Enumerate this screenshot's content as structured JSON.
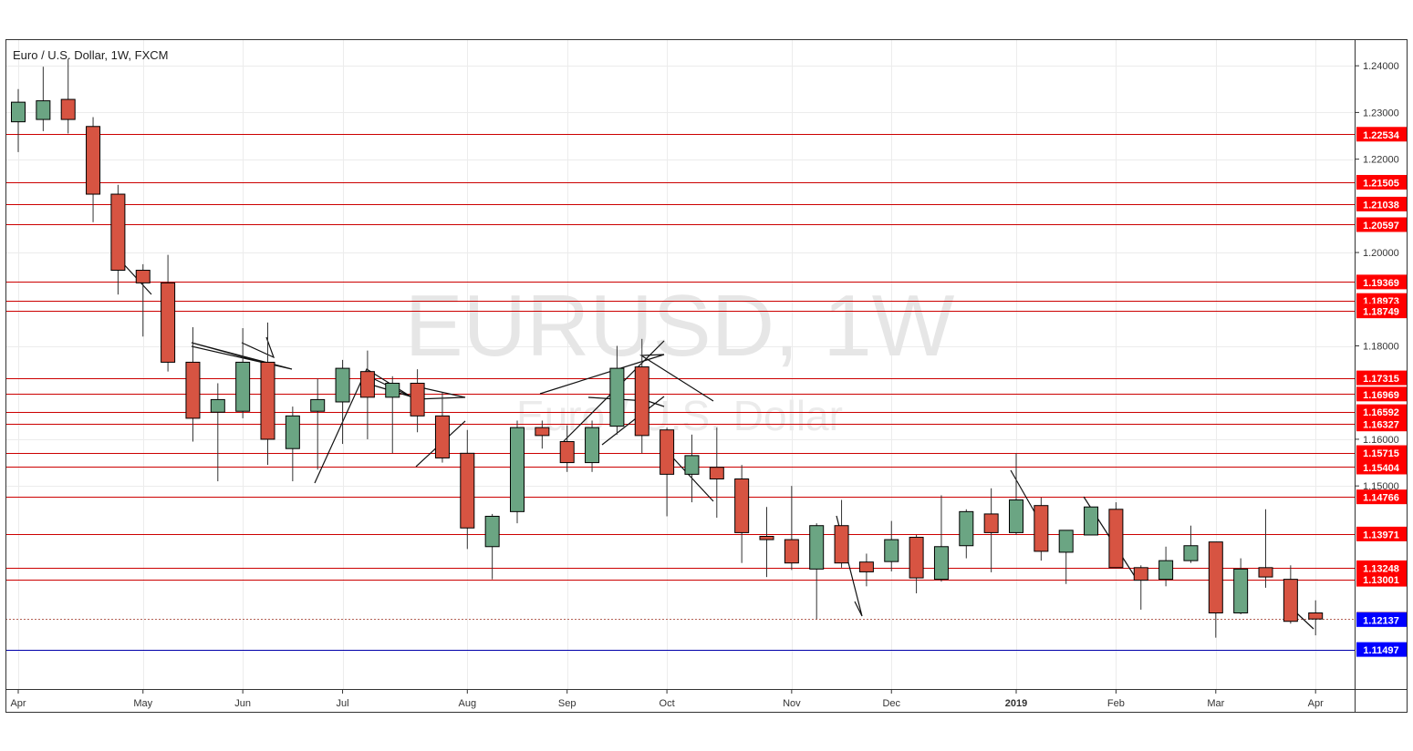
{
  "header": {
    "symbol_title": "Euro / U.S. Dollar, 1W, FXCM",
    "watermark_main": "EURUSD, 1W",
    "watermark_sub": "Euro / U.S. Dollar"
  },
  "colors": {
    "up_fill": "#6ba583",
    "down_fill": "#d75442",
    "candle_outline": "#000000",
    "hline": "#cc0000",
    "hline_label_bg": "#ff0000",
    "blue_line": "#0000aa",
    "blue_label_bg": "#0000ff",
    "last_price_bg": "#b56357",
    "watermark": "#e6e6e6",
    "grid": "#ececec"
  },
  "chart_data": {
    "type": "candlestick",
    "title": "Euro / U.S. Dollar, 1W, FXCM",
    "ylim": [
      1.1065,
      1.2455
    ],
    "y_ticks": [
      "1.24000",
      "1.23000",
      "1.22000",
      "1.20000",
      "1.18000",
      "1.16000",
      "1.15000"
    ],
    "x_ticks": [
      "Apr",
      "May",
      "Jun",
      "Jul",
      "Aug",
      "Sep",
      "Oct",
      "Nov",
      "Dec",
      "2019",
      "Feb",
      "Mar",
      "Apr"
    ],
    "x_tick_weeks": [
      0,
      5,
      9,
      13,
      18,
      22,
      26,
      31,
      35,
      40,
      44,
      48,
      52
    ],
    "grid": true,
    "candles": [
      {
        "o": 1.228,
        "h": 1.235,
        "l": 1.2215,
        "c": 1.2322
      },
      {
        "o": 1.2285,
        "h": 1.2398,
        "l": 1.226,
        "c": 1.2325
      },
      {
        "o": 1.2328,
        "h": 1.2415,
        "l": 1.2255,
        "c": 1.2285
      },
      {
        "o": 1.227,
        "h": 1.229,
        "l": 1.2065,
        "c": 1.2125
      },
      {
        "o": 1.2125,
        "h": 1.2145,
        "l": 1.191,
        "c": 1.1962
      },
      {
        "o": 1.1962,
        "h": 1.1975,
        "l": 1.182,
        "c": 1.1935
      },
      {
        "o": 1.1935,
        "h": 1.1995,
        "l": 1.1745,
        "c": 1.1765
      },
      {
        "o": 1.1765,
        "h": 1.184,
        "l": 1.1595,
        "c": 1.1645
      },
      {
        "o": 1.1658,
        "h": 1.172,
        "l": 1.151,
        "c": 1.1685
      },
      {
        "o": 1.166,
        "h": 1.1838,
        "l": 1.1645,
        "c": 1.1765
      },
      {
        "o": 1.1765,
        "h": 1.185,
        "l": 1.1545,
        "c": 1.16
      },
      {
        "o": 1.158,
        "h": 1.167,
        "l": 1.151,
        "c": 1.165
      },
      {
        "o": 1.166,
        "h": 1.173,
        "l": 1.1535,
        "c": 1.1685
      },
      {
        "o": 1.168,
        "h": 1.177,
        "l": 1.159,
        "c": 1.1752
      },
      {
        "o": 1.1745,
        "h": 1.179,
        "l": 1.16,
        "c": 1.169
      },
      {
        "o": 1.169,
        "h": 1.1735,
        "l": 1.157,
        "c": 1.172
      },
      {
        "o": 1.172,
        "h": 1.175,
        "l": 1.1615,
        "c": 1.165
      },
      {
        "o": 1.165,
        "h": 1.17,
        "l": 1.155,
        "c": 1.156
      },
      {
        "o": 1.157,
        "h": 1.162,
        "l": 1.1365,
        "c": 1.141
      },
      {
        "o": 1.137,
        "h": 1.144,
        "l": 1.13,
        "c": 1.1435
      },
      {
        "o": 1.1445,
        "h": 1.164,
        "l": 1.142,
        "c": 1.1625
      },
      {
        "o": 1.1625,
        "h": 1.164,
        "l": 1.158,
        "c": 1.1608
      },
      {
        "o": 1.1595,
        "h": 1.163,
        "l": 1.153,
        "c": 1.155
      },
      {
        "o": 1.155,
        "h": 1.164,
        "l": 1.153,
        "c": 1.1625
      },
      {
        "o": 1.1628,
        "h": 1.18,
        "l": 1.161,
        "c": 1.1752
      },
      {
        "o": 1.1755,
        "h": 1.1815,
        "l": 1.157,
        "c": 1.1608
      },
      {
        "o": 1.162,
        "h": 1.1625,
        "l": 1.1435,
        "c": 1.1525
      },
      {
        "o": 1.1525,
        "h": 1.161,
        "l": 1.1465,
        "c": 1.1565
      },
      {
        "o": 1.154,
        "h": 1.1625,
        "l": 1.1432,
        "c": 1.1515
      },
      {
        "o": 1.1515,
        "h": 1.1545,
        "l": 1.1335,
        "c": 1.14
      },
      {
        "o": 1.1392,
        "h": 1.1455,
        "l": 1.1305,
        "c": 1.1385
      },
      {
        "o": 1.1385,
        "h": 1.15,
        "l": 1.132,
        "c": 1.1335
      },
      {
        "o": 1.1322,
        "h": 1.142,
        "l": 1.1215,
        "c": 1.1415
      },
      {
        "o": 1.1415,
        "h": 1.147,
        "l": 1.1325,
        "c": 1.1335
      },
      {
        "o": 1.1337,
        "h": 1.1355,
        "l": 1.1285,
        "c": 1.1316
      },
      {
        "o": 1.1338,
        "h": 1.1425,
        "l": 1.1317,
        "c": 1.1385
      },
      {
        "o": 1.139,
        "h": 1.1395,
        "l": 1.127,
        "c": 1.1303
      },
      {
        "o": 1.13,
        "h": 1.148,
        "l": 1.1295,
        "c": 1.137
      },
      {
        "o": 1.1372,
        "h": 1.145,
        "l": 1.1345,
        "c": 1.1445
      },
      {
        "o": 1.144,
        "h": 1.1495,
        "l": 1.1315,
        "c": 1.14
      },
      {
        "o": 1.14,
        "h": 1.157,
        "l": 1.1395,
        "c": 1.147
      },
      {
        "o": 1.1458,
        "h": 1.1475,
        "l": 1.134,
        "c": 1.136
      },
      {
        "o": 1.1358,
        "h": 1.1405,
        "l": 1.129,
        "c": 1.1405
      },
      {
        "o": 1.1395,
        "h": 1.1455,
        "l": 1.1395,
        "c": 1.1455
      },
      {
        "o": 1.145,
        "h": 1.1465,
        "l": 1.1325,
        "c": 1.1325
      },
      {
        "o": 1.1325,
        "h": 1.133,
        "l": 1.1235,
        "c": 1.1298
      },
      {
        "o": 1.13,
        "h": 1.137,
        "l": 1.1285,
        "c": 1.134
      },
      {
        "o": 1.134,
        "h": 1.1415,
        "l": 1.1335,
        "c": 1.1372
      },
      {
        "o": 1.138,
        "h": 1.138,
        "l": 1.1175,
        "c": 1.1228
      },
      {
        "o": 1.1228,
        "h": 1.1345,
        "l": 1.1225,
        "c": 1.1322
      },
      {
        "o": 1.1325,
        "h": 1.145,
        "l": 1.1282,
        "c": 1.1305
      },
      {
        "o": 1.13,
        "h": 1.133,
        "l": 1.1205,
        "c": 1.121
      },
      {
        "o": 1.1228,
        "h": 1.1255,
        "l": 1.118,
        "c": 1.1215
      }
    ],
    "horizontal_levels": [
      "1.22534",
      "1.21505",
      "1.21038",
      "1.20597",
      "1.19369",
      "1.18973",
      "1.18749",
      "1.17315",
      "1.16969",
      "1.16592",
      "1.16327",
      "1.15715",
      "1.15404",
      "1.14766",
      "1.13971",
      "1.13248",
      "1.13001"
    ],
    "last_price": "1.12146",
    "blue_labels": [
      "1.12137",
      "1.11497"
    ]
  }
}
